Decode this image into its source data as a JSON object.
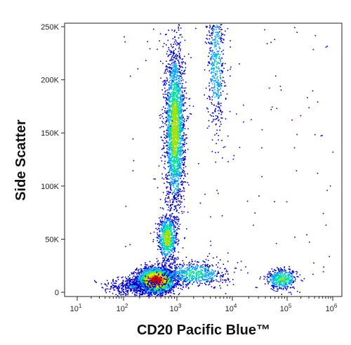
{
  "chart_data": {
    "type": "scatter",
    "subtype": "flow-cytometry-density-dot-plot",
    "title": "",
    "xlabel": "CD20 Pacific Blue™",
    "ylabel": "Side Scatter",
    "x_scale": "biexponential",
    "y_scale": "linear",
    "xlim": [
      5,
      1000000
    ],
    "ylim": [
      -12000,
      262144
    ],
    "x_ticks": [
      {
        "value": 10,
        "base": "10",
        "exp": "1"
      },
      {
        "value": 100,
        "base": "10",
        "exp": "2"
      },
      {
        "value": 1000,
        "base": "10",
        "exp": "3"
      },
      {
        "value": 10000,
        "base": "10",
        "exp": "4"
      },
      {
        "value": 100000,
        "base": "10",
        "exp": "5"
      },
      {
        "value": 1000000,
        "base": "10",
        "exp": "6"
      }
    ],
    "y_ticks": [
      {
        "value": 0,
        "label": "0"
      },
      {
        "value": 50000,
        "label": "50K"
      },
      {
        "value": 100000,
        "label": "100K"
      },
      {
        "value": 150000,
        "label": "150K"
      },
      {
        "value": 200000,
        "label": "200K"
      },
      {
        "value": 250000,
        "label": "250K"
      }
    ],
    "grid": false,
    "legend": "none",
    "colormap": [
      "#0000cc",
      "#00a0ff",
      "#00e0a0",
      "#a0e000",
      "#ffe000",
      "#ff8000",
      "#e00000"
    ],
    "populations": [
      {
        "x_center": 400,
        "x_spread_decades": 0.18,
        "y_center": 12000,
        "y_spread": 6000,
        "weight": 0.32,
        "peak_density": 1.0
      },
      {
        "x_center": 900,
        "x_spread_decades": 0.09,
        "y_center": 155000,
        "y_spread": 38000,
        "weight": 0.28,
        "peak_density": 0.55
      },
      {
        "x_center": 650,
        "x_spread_decades": 0.09,
        "y_center": 52000,
        "y_spread": 11000,
        "weight": 0.08,
        "peak_density": 0.55
      },
      {
        "x_center": 5000,
        "x_spread_decades": 0.08,
        "y_center": 215000,
        "y_spread": 32000,
        "weight": 0.06,
        "peak_density": 0.3
      },
      {
        "x_center": 2000,
        "x_spread_decades": 0.3,
        "y_center": 18000,
        "y_spread": 6000,
        "weight": 0.07,
        "peak_density": 0.35
      },
      {
        "x_center": 80000,
        "x_spread_decades": 0.15,
        "y_center": 13000,
        "y_spread": 5000,
        "weight": 0.05,
        "peak_density": 0.45
      },
      {
        "x_center": 150,
        "x_spread_decades": 0.3,
        "y_center": 6000,
        "y_spread": 4000,
        "weight": 0.05,
        "peak_density": 0.15
      }
    ]
  }
}
